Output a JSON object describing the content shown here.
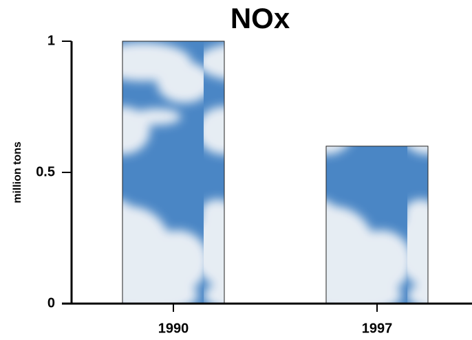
{
  "chart_data": {
    "type": "bar",
    "title": "NOx",
    "y_label": "million tons",
    "categories": [
      "1990",
      "1997"
    ],
    "values": [
      1,
      0.6
    ],
    "color": "#4a86c5",
    "ylim": [
      0,
      1
    ],
    "yticks": [
      0,
      0.5,
      1
    ],
    "grid": false
  }
}
